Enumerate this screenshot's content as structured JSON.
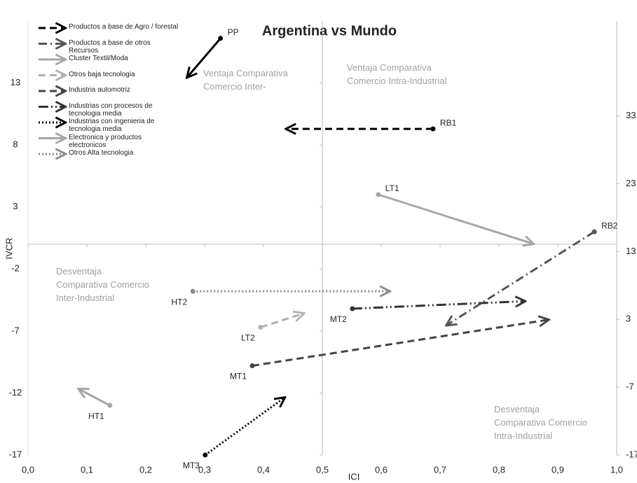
{
  "chart_data": {
    "type": "arrow-scatter",
    "title": "Argentina vs Mundo",
    "x_label": "ICI",
    "y_label": "IVCR",
    "xlim": [
      0,
      1
    ],
    "xticks": [
      {
        "value": 0,
        "label": "0,0"
      },
      {
        "value": 0.1,
        "label": "0,1"
      },
      {
        "value": 0.2,
        "label": "0,2"
      },
      {
        "value": 0.3,
        "label": "0,3"
      },
      {
        "value": 0.4,
        "label": "0,4"
      },
      {
        "value": 0.5,
        "label": "0,5"
      },
      {
        "value": 0.6,
        "label": "0,6"
      },
      {
        "value": 0.7,
        "label": "0,7"
      },
      {
        "value": 0.8,
        "label": "0,8"
      },
      {
        "value": 0.9,
        "label": "0,9"
      },
      {
        "value": 1,
        "label": "1,0"
      }
    ],
    "ylim": [
      -17,
      18
    ],
    "yticks": [
      13,
      8,
      3,
      -2,
      -7,
      -12,
      -17
    ],
    "y2lim": [
      -17,
      47
    ],
    "y2ticks": [
      33,
      23,
      13,
      3,
      -7,
      -17
    ],
    "quadrant_labels": [
      "Ventaja Comparativa Comercio Inter-",
      "Ventaja Comparativa Comercio Intra-Industrial",
      "Desventaja Comparativa Comercio Inter-Industrial",
      "Desventaja Comparativa Comercio Intra-Industrial"
    ],
    "series": [
      {
        "label": "PP",
        "color": "#000000",
        "dash": "solid",
        "x": [
          0.327,
          0.271
        ],
        "y": [
          16.6,
          13.5
        ]
      },
      {
        "name": "Productos a base de Agro / forestal",
        "label": "RB1",
        "color": "#000000",
        "dash": "dashed",
        "x": [
          0.688,
          0.44
        ],
        "y": [
          9.3,
          9.3
        ]
      },
      {
        "name": "Productos a base de otros Recursos",
        "label": "RB2",
        "color": "#555555",
        "dash": "dashdot",
        "x": [
          0.962,
          0.712
        ],
        "y": [
          1.0,
          -6.5
        ]
      },
      {
        "name": "Cluster Textil/Moda",
        "label": "LT1",
        "color": "#a6a6a6",
        "dash": "solid",
        "x": [
          0.595,
          0.857
        ],
        "y": [
          4.0,
          0.05
        ]
      },
      {
        "name": "Otros baja tecnologia",
        "label": "LT2",
        "color": "#b0b0b0",
        "dash": "dashed",
        "x": [
          0.395,
          0.467
        ],
        "y": [
          -6.7,
          -5.6
        ]
      },
      {
        "name": "Industria automotriz",
        "label": "MT1",
        "color": "#444444",
        "dash": "dashed",
        "x": [
          0.381,
          0.883
        ],
        "y": [
          -9.8,
          -6.1
        ]
      },
      {
        "name": "Industrias con procesos de tecnologia media",
        "label": "MT2",
        "color": "#333333",
        "dash": "dashdotdot",
        "x": [
          0.551,
          0.843
        ],
        "y": [
          -5.2,
          -4.6
        ]
      },
      {
        "name": "Industrias con ingenieria de tecnologia media",
        "label": "MT3",
        "color": "#000000",
        "dash": "dotted",
        "x": [
          0.301,
          0.435
        ],
        "y": [
          -17.0,
          -12.4
        ]
      },
      {
        "name": "Electronica y productos electronicos",
        "label": "HT1",
        "color": "#a6a6a6",
        "dash": "solid",
        "x": [
          0.139,
          0.087
        ],
        "y": [
          -13.0,
          -11.7
        ]
      },
      {
        "name": "Otros Alta tecnologia",
        "label": "HT2",
        "color": "#8c8c8c",
        "dash": "dotted",
        "x": [
          0.28,
          0.613
        ],
        "y": [
          -3.8,
          -3.8
        ]
      }
    ]
  }
}
